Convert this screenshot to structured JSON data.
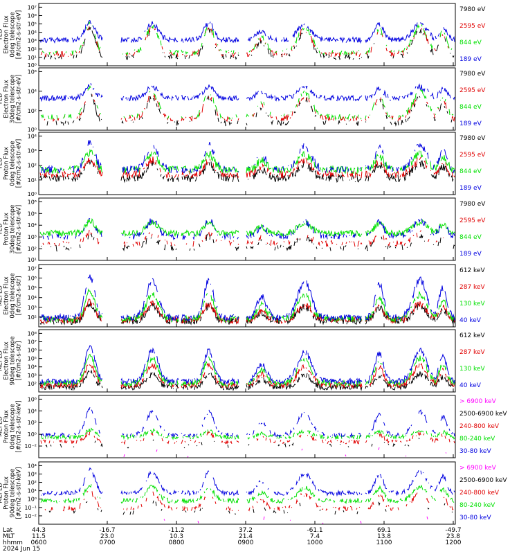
{
  "colors": {
    "black": "#000000",
    "red": "#e00000",
    "green": "#00e000",
    "blue": "#0000e0",
    "magenta": "#ff00ff"
  },
  "chart_data": [
    {
      "type": "line",
      "ylabel_lines": [
        "TED",
        "Electron Flux",
        "0deg telescope",
        "[#/cm2-s-str-eV]"
      ],
      "y_log_range": [
        0,
        7
      ],
      "y_tick_labels": [
        "10¹",
        "10²",
        "10³",
        "10⁴",
        "10⁵",
        "10⁶",
        "10⁷"
      ],
      "y_tick_labels_bottom": "10⁰",
      "series": [
        {
          "name": "7980 eV",
          "color": "black",
          "base": 1.0,
          "peak": 4.3,
          "density": 0.55
        },
        {
          "name": "2595 eV",
          "color": "red",
          "base": 1.3,
          "peak": 4.6,
          "density": 0.6
        },
        {
          "name": "844 eV",
          "color": "green",
          "base": 1.5,
          "peak": 4.8,
          "density": 0.6
        },
        {
          "name": "189 eV",
          "color": "blue",
          "base": 2.9,
          "peak": 5.0,
          "density": 0.9
        }
      ]
    },
    {
      "type": "line",
      "ylabel_lines": [
        "TED",
        "Electron Flux",
        "30deg telescope",
        "[#/cm2-s-str-eV]"
      ],
      "y_log_range": [
        0,
        7
      ],
      "y_tick_labels": [
        "10²",
        "10⁴",
        "10⁶"
      ],
      "y_tick_labels_bottom": "10⁰",
      "series": [
        {
          "name": "7980 eV",
          "color": "black",
          "base": 0.8,
          "peak": 4.0,
          "density": 0.5
        },
        {
          "name": "2595 eV",
          "color": "red",
          "base": 1.3,
          "peak": 4.2,
          "density": 0.6
        },
        {
          "name": "844 eV",
          "color": "green",
          "base": 1.5,
          "peak": 4.7,
          "density": 0.6
        },
        {
          "name": "189 eV",
          "color": "blue",
          "base": 3.6,
          "peak": 5.0,
          "density": 0.9
        }
      ]
    },
    {
      "type": "line",
      "ylabel_lines": [
        "TED",
        "Proton Flux",
        "0deg telescope",
        "[#/cm2-s-str-eV]"
      ],
      "y_log_range": [
        0,
        5
      ],
      "y_tick_labels": [
        "10¹",
        "10²",
        "10³",
        "10⁴"
      ],
      "y_tick_labels_bottom": "10⁰",
      "series": [
        {
          "name": "7980 eV",
          "color": "black",
          "base": 1.3,
          "peak": 2.6,
          "density": 0.8
        },
        {
          "name": "2595 eV",
          "color": "red",
          "base": 1.6,
          "peak": 2.9,
          "density": 0.8
        },
        {
          "name": "844 eV",
          "color": "green",
          "base": 2.0,
          "peak": 3.4,
          "density": 0.9
        },
        {
          "name": "189 eV",
          "color": "blue",
          "base": 2.0,
          "peak": 4.2,
          "density": 0.7
        }
      ]
    },
    {
      "type": "line",
      "ylabel_lines": [
        "TED",
        "Proton Flux",
        "30deg telescope",
        "[#/cm2-s-str-eV]"
      ],
      "y_log_range": [
        0,
        6
      ],
      "y_tick_labels": [
        "10²",
        "10³",
        "10⁴",
        "10⁵",
        "10⁶"
      ],
      "y_tick_labels_bottom": "10¹",
      "series": [
        {
          "name": "7980 eV",
          "color": "black",
          "base": 1.2,
          "peak": 2.4,
          "density": 0.5
        },
        {
          "name": "2595 eV",
          "color": "red",
          "base": 1.6,
          "peak": 2.7,
          "density": 0.5
        },
        {
          "name": "844 eV",
          "color": "green",
          "base": 2.6,
          "peak": 3.8,
          "density": 1.0
        },
        {
          "name": "189 eV",
          "color": "blue",
          "base": 2.3,
          "peak": 4.0,
          "density": 0.7
        }
      ]
    },
    {
      "type": "line",
      "ylabel_lines": [
        "MEPED",
        "Electron Flux",
        "0deg telescope",
        "[#/cm2-s-str]"
      ],
      "y_log_range": [
        1.5,
        7
      ],
      "y_tick_labels": [
        "10²",
        "10³",
        "10⁴",
        "10⁵",
        "10⁶",
        "10⁷"
      ],
      "y_tick_labels_bottom": "",
      "series": [
        {
          "name": "612 keV",
          "color": "black",
          "base": 2.0,
          "peak": 3.5,
          "density": 0.9
        },
        {
          "name": "287 keV",
          "color": "red",
          "base": 2.1,
          "peak": 3.7,
          "density": 0.9
        },
        {
          "name": "130 keV",
          "color": "green",
          "base": 2.2,
          "peak": 4.6,
          "density": 0.9
        },
        {
          "name": "40 keV",
          "color": "blue",
          "base": 2.3,
          "peak": 6.0,
          "density": 0.9
        }
      ]
    },
    {
      "type": "line",
      "ylabel_lines": [
        "MEPED",
        "Electron Flux",
        "90deg telescope",
        "[#/cm2-s-str]"
      ],
      "y_log_range": [
        1.5,
        8
      ],
      "y_tick_labels": [
        "10²",
        "10³",
        "10⁴",
        "10⁵",
        "10⁶",
        "10⁷",
        "10⁸"
      ],
      "y_tick_labels_bottom": "",
      "series": [
        {
          "name": "612 keV",
          "color": "black",
          "base": 2.0,
          "peak": 3.5,
          "density": 0.9
        },
        {
          "name": "287 keV",
          "color": "red",
          "base": 2.2,
          "peak": 4.5,
          "density": 0.9
        },
        {
          "name": "130 keV",
          "color": "green",
          "base": 2.4,
          "peak": 5.3,
          "density": 0.9
        },
        {
          "name": "40 keV",
          "color": "blue",
          "base": 2.6,
          "peak": 6.2,
          "density": 0.9
        }
      ]
    },
    {
      "type": "line",
      "ylabel_lines": [
        "MEPED",
        "Proton Flux",
        "0deg telescope",
        "[#/cm2-s-str-keV]"
      ],
      "y_log_range": [
        -3,
        6
      ],
      "y_tick_labels": [
        "10⁻²",
        "10⁰",
        "10²",
        "10⁴",
        "10⁶"
      ],
      "y_tick_labels_bottom": "",
      "series": [
        {
          "name": "> 6900 keV",
          "color": "magenta",
          "base": -2.8,
          "peak": -1.5,
          "density": 0.1
        },
        {
          "name": "2500-6900 keV",
          "color": "black",
          "base": -1.3,
          "peak": -0.3,
          "density": 0.3
        },
        {
          "name": "240-800 keV",
          "color": "red",
          "base": -0.7,
          "peak": 0.6,
          "density": 0.6
        },
        {
          "name": "80-240 keV",
          "color": "green",
          "base": 0.0,
          "peak": 1.0,
          "density": 0.8
        },
        {
          "name": "30-80 keV",
          "color": "blue",
          "base": 0.3,
          "peak": 4.0,
          "density": 0.7
        }
      ]
    },
    {
      "type": "line",
      "ylabel_lines": [
        "MEPED",
        "Proton Flux",
        "90deg telescope",
        "[#/cm2-s-str-keV]"
      ],
      "y_log_range": [
        -3,
        5
      ],
      "y_tick_labels": [
        "10⁻²",
        "10⁻¹",
        "10⁰",
        "10¹",
        "10²",
        "10³",
        "10⁴"
      ],
      "y_tick_labels_bottom": "",
      "series": [
        {
          "name": "> 6900 keV",
          "color": "magenta",
          "base": -2.8,
          "peak": -1.5,
          "density": 0.1
        },
        {
          "name": "2500-6900 keV",
          "color": "black",
          "base": -1.5,
          "peak": 0.0,
          "density": 0.3
        },
        {
          "name": "240-800 keV",
          "color": "red",
          "base": -1.0,
          "peak": 1.2,
          "density": 0.6
        },
        {
          "name": "80-240 keV",
          "color": "green",
          "base": 0.0,
          "peak": 2.0,
          "density": 0.8
        },
        {
          "name": "30-80 keV",
          "color": "blue",
          "base": 1.0,
          "peak": 4.0,
          "density": 0.8
        }
      ]
    }
  ],
  "x_axis": {
    "row_labels": [
      "Lat",
      "MLT",
      "hhmm",
      "2024 Jun 15"
    ],
    "ticks": [
      {
        "lat": "44.3",
        "mlt": "11.5",
        "hhmm": "0600"
      },
      {
        "lat": "-16.7",
        "mlt": "23.0",
        "hhmm": "0700"
      },
      {
        "lat": "-11.2",
        "mlt": "10.3",
        "hhmm": "0800"
      },
      {
        "lat": "37.2",
        "mlt": "21.4",
        "hhmm": "0900"
      },
      {
        "lat": "-61.1",
        "mlt": "7.4",
        "hhmm": "1000"
      },
      {
        "lat": "69.1",
        "mlt": "13.8",
        "hhmm": "1100"
      },
      {
        "lat": "-49.7",
        "mlt": "23.8",
        "hhmm": "1200"
      }
    ]
  }
}
